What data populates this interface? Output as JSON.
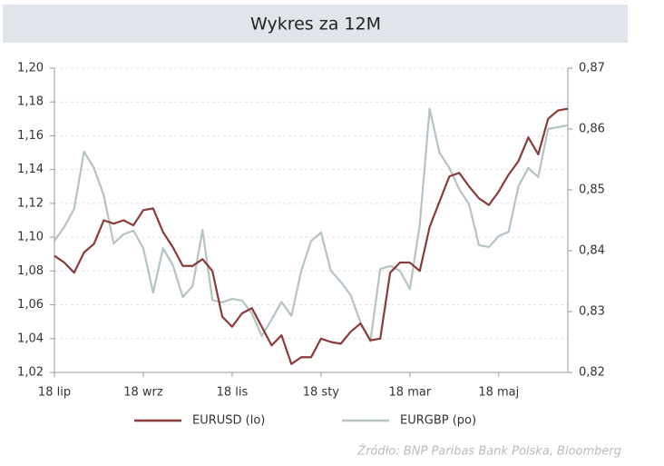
{
  "chart_data": {
    "type": "line",
    "title": "Wykres za 12M",
    "source": "Źródło:  BNP Paribas Bank Polska, Bloomberg",
    "categories": [
      "18 lip",
      null,
      null,
      null,
      null,
      null,
      null,
      null,
      null,
      "18 wrz",
      null,
      null,
      null,
      null,
      null,
      null,
      null,
      null,
      "18 lis",
      null,
      null,
      null,
      null,
      null,
      null,
      null,
      null,
      "18 sty",
      null,
      null,
      null,
      null,
      null,
      null,
      null,
      null,
      "18 mar",
      null,
      null,
      null,
      null,
      null,
      null,
      null,
      null,
      "18 maj",
      null,
      null,
      null,
      null,
      null,
      null,
      null
    ],
    "series": [
      {
        "name": "EURUSD (lo)",
        "color": "#8b3a3a",
        "axis": "y",
        "values": [
          1.089,
          1.085,
          1.079,
          1.091,
          1.096,
          1.11,
          1.108,
          1.11,
          1.107,
          1.116,
          1.117,
          1.103,
          1.094,
          1.083,
          1.083,
          1.087,
          1.08,
          1.053,
          1.047,
          1.055,
          1.058,
          1.047,
          1.036,
          1.042,
          1.025,
          1.029,
          1.029,
          1.04,
          1.038,
          1.037,
          1.044,
          1.049,
          1.039,
          1.04,
          1.079,
          1.085,
          1.085,
          1.08,
          1.106,
          1.121,
          1.136,
          1.138,
          1.13,
          1.123,
          1.119,
          1.127,
          1.137,
          1.145,
          1.159,
          1.149,
          1.17,
          1.175,
          1.176
        ]
      },
      {
        "name": "EURGBP (po)",
        "color": "#b5c4bd",
        "axis": "y2",
        "values": [
          0.8416,
          0.8439,
          0.8469,
          0.8563,
          0.8536,
          0.8491,
          0.8412,
          0.8427,
          0.8433,
          0.8404,
          0.8331,
          0.8404,
          0.8376,
          0.8324,
          0.8342,
          0.8434,
          0.8319,
          0.8315,
          0.8321,
          0.8318,
          0.8297,
          0.826,
          0.8287,
          0.8316,
          0.8293,
          0.8367,
          0.8416,
          0.843,
          0.8367,
          0.8349,
          0.8327,
          0.8282,
          0.8251,
          0.837,
          0.8375,
          0.8367,
          0.8337,
          0.8442,
          0.8633,
          0.8561,
          0.8536,
          0.8501,
          0.8476,
          0.8409,
          0.8406,
          0.8424,
          0.8431,
          0.8506,
          0.8536,
          0.8521,
          0.86,
          0.8603,
          0.8606
        ]
      }
    ],
    "ylim": [
      1.02,
      1.2
    ],
    "yticks": [
      {
        "value": 1.02,
        "label": "1,02"
      },
      {
        "value": 1.04,
        "label": "1,04"
      },
      {
        "value": 1.06,
        "label": "1,06"
      },
      {
        "value": 1.08,
        "label": "1,08"
      },
      {
        "value": 1.1,
        "label": "1,10"
      },
      {
        "value": 1.12,
        "label": "1,12"
      },
      {
        "value": 1.14,
        "label": "1,14"
      },
      {
        "value": 1.16,
        "label": "1,16"
      },
      {
        "value": 1.18,
        "label": "1,18"
      },
      {
        "value": 1.2,
        "label": "1,20"
      }
    ],
    "y2lim": [
      0.82,
      0.87
    ],
    "y2ticks": [
      {
        "value": 0.82,
        "label": "0,82"
      },
      {
        "value": 0.83,
        "label": "0,83"
      },
      {
        "value": 0.84,
        "label": "0,84"
      },
      {
        "value": 0.85,
        "label": "0,85"
      },
      {
        "value": 0.86,
        "label": "0,86"
      },
      {
        "value": 0.87,
        "label": "0,87"
      }
    ],
    "grid": true
  }
}
